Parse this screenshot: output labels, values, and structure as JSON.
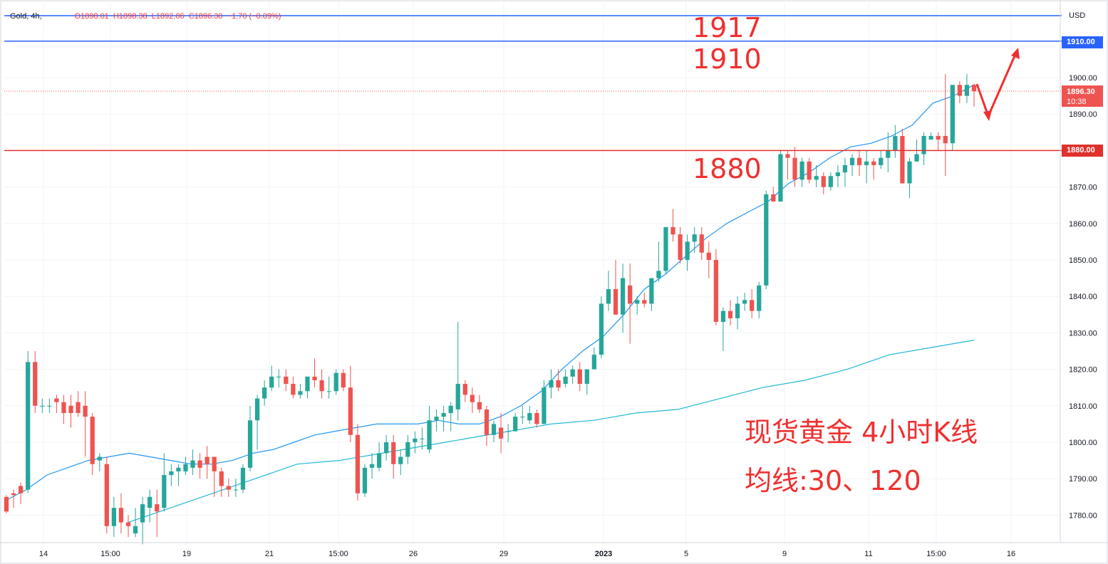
{
  "header": {
    "symbol": "Gold, 4h,",
    "open": "O1898.01",
    "high": "H1898.38",
    "low": "L1892.06",
    "close": "C1896.30",
    "change": "−1.70 (−0.09%)"
  },
  "price_axis": {
    "currency": "USD",
    "ticks": [
      "1900.00",
      "1890.00",
      "1870.00",
      "1860.00",
      "1850.00",
      "1840.00",
      "1830.00",
      "1820.00",
      "1810.00",
      "1800.00",
      "1790.00",
      "1780.00"
    ],
    "tag_upper": "1910.00",
    "tag_current": "1896.30",
    "tag_countdown": "10:38",
    "tag_red": "1880.00"
  },
  "time_axis": [
    "14",
    "15:00",
    "19",
    "21",
    "15:00",
    "26",
    "29",
    "2023",
    "5",
    "9",
    "11",
    "15:00",
    "16"
  ],
  "annotations": {
    "level_1917": "1917",
    "level_1910": "1910",
    "level_1880": "1880",
    "title_line1": "现货黄金 4小时K线",
    "title_line2": "均线:30、120"
  },
  "colors": {
    "up": "#26a69a",
    "down": "#ef5350",
    "ma30": "#2196f3",
    "ma120": "#22b8d4",
    "hline_blue": "#2962ff",
    "hline_red": "#e0312c",
    "annotation": "#f0302f"
  },
  "chart_data": {
    "type": "candlestick",
    "series": [
      {
        "name": "Gold, 4h",
        "ohlc": [
          [
            1785,
            1785.5,
            1780.5,
            1781
          ],
          [
            1786,
            1787,
            1782,
            1785.5
          ],
          [
            1788,
            1789,
            1783,
            1786
          ],
          [
            1787,
            1825,
            1786,
            1822
          ],
          [
            1822,
            1825,
            1808,
            1810
          ],
          [
            1810,
            1812,
            1808,
            1810
          ],
          [
            1810,
            1812,
            1808,
            1810
          ],
          [
            1812,
            1813,
            1808,
            1811
          ],
          [
            1811,
            1813,
            1805,
            1808
          ],
          [
            1810,
            1813,
            1804,
            1808
          ],
          [
            1811,
            1814,
            1807,
            1808
          ],
          [
            1810,
            1814,
            1796,
            1807
          ],
          [
            1807,
            1808,
            1791,
            1794
          ],
          [
            1795,
            1797,
            1792,
            1796
          ],
          [
            1794,
            1796,
            1775,
            1777
          ],
          [
            1777,
            1785,
            1774,
            1782
          ],
          [
            1782,
            1786,
            1775,
            1778
          ],
          [
            1778,
            1780,
            1774,
            1777
          ],
          [
            1775,
            1782,
            1774,
            1777
          ],
          [
            1778,
            1785,
            1772,
            1783
          ],
          [
            1782,
            1787,
            1778,
            1785
          ],
          [
            1783,
            1787,
            1774,
            1781
          ],
          [
            1782,
            1797,
            1781,
            1791
          ],
          [
            1791,
            1794,
            1788,
            1792
          ],
          [
            1792,
            1794,
            1788,
            1793
          ],
          [
            1792,
            1796,
            1791,
            1794
          ],
          [
            1793,
            1798,
            1791,
            1795
          ],
          [
            1795,
            1797,
            1790,
            1793
          ],
          [
            1796,
            1799,
            1790,
            1794
          ],
          [
            1796,
            1796,
            1785,
            1792
          ],
          [
            1792,
            1793,
            1785,
            1788
          ],
          [
            1788,
            1790,
            1785,
            1787
          ],
          [
            1787,
            1790,
            1785,
            1787
          ],
          [
            1787,
            1794,
            1786,
            1793
          ],
          [
            1793,
            1810,
            1792,
            1806
          ],
          [
            1806,
            1813,
            1798,
            1812
          ],
          [
            1812,
            1817,
            1810,
            1815
          ],
          [
            1815,
            1821,
            1814,
            1818
          ],
          [
            1818,
            1820,
            1815,
            1818
          ],
          [
            1818,
            1820,
            1814,
            1816
          ],
          [
            1816,
            1818,
            1812,
            1813
          ],
          [
            1813,
            1816,
            1812,
            1814
          ],
          [
            1814,
            1818,
            1812,
            1818
          ],
          [
            1818,
            1823,
            1815,
            1817
          ],
          [
            1817,
            1820,
            1812,
            1814
          ],
          [
            1814,
            1818,
            1812,
            1814
          ],
          [
            1814,
            1820,
            1813,
            1819
          ],
          [
            1819,
            1820,
            1814,
            1815
          ],
          [
            1815,
            1821,
            1800,
            1802
          ],
          [
            1802,
            1805,
            1784,
            1786
          ],
          [
            1786,
            1794,
            1785,
            1793
          ],
          [
            1793,
            1797,
            1790,
            1794
          ],
          [
            1793,
            1800,
            1792,
            1797
          ],
          [
            1797,
            1802,
            1795,
            1800
          ],
          [
            1800,
            1802,
            1790,
            1794
          ],
          [
            1794,
            1798,
            1791,
            1796
          ],
          [
            1796,
            1802,
            1794,
            1800
          ],
          [
            1800,
            1803,
            1797,
            1801
          ],
          [
            1801,
            1804,
            1798,
            1801
          ],
          [
            1798,
            1810,
            1797,
            1806
          ],
          [
            1806,
            1809,
            1803,
            1807
          ],
          [
            1807,
            1810,
            1803,
            1808
          ],
          [
            1808,
            1811,
            1803,
            1810
          ],
          [
            1809,
            1833,
            1806,
            1816
          ],
          [
            1816,
            1817,
            1811,
            1813
          ],
          [
            1813,
            1815,
            1808,
            1811
          ],
          [
            1811,
            1813,
            1808,
            1809
          ],
          [
            1809,
            1810,
            1799,
            1802
          ],
          [
            1802,
            1806,
            1800,
            1805
          ],
          [
            1804,
            1808,
            1797,
            1801
          ],
          [
            1803,
            1805,
            1800,
            1803
          ],
          [
            1803,
            1808,
            1803,
            1807
          ],
          [
            1807,
            1810,
            1805,
            1807
          ],
          [
            1806,
            1810,
            1805,
            1808
          ],
          [
            1808,
            1809,
            1804,
            1805
          ],
          [
            1805,
            1817,
            1805,
            1815
          ],
          [
            1815,
            1820,
            1812,
            1817
          ],
          [
            1817,
            1820,
            1814,
            1815
          ],
          [
            1816,
            1820,
            1815,
            1818
          ],
          [
            1818,
            1821,
            1816,
            1820
          ],
          [
            1820,
            1822,
            1814,
            1816
          ],
          [
            1816,
            1820,
            1813,
            1820
          ],
          [
            1820,
            1826,
            1820,
            1824
          ],
          [
            1824,
            1840,
            1823,
            1838
          ],
          [
            1838,
            1847,
            1836,
            1842
          ],
          [
            1842,
            1850,
            1835,
            1835
          ],
          [
            1835,
            1849,
            1830,
            1845
          ],
          [
            1843,
            1849,
            1827,
            1838
          ],
          [
            1838,
            1840,
            1835,
            1839
          ],
          [
            1839,
            1841,
            1837,
            1838
          ],
          [
            1838,
            1845,
            1836,
            1845
          ],
          [
            1845,
            1855,
            1844,
            1847
          ],
          [
            1847,
            1859,
            1846,
            1859
          ],
          [
            1859,
            1864,
            1855,
            1857
          ],
          [
            1857,
            1859,
            1849,
            1850
          ],
          [
            1850,
            1857,
            1847,
            1855
          ],
          [
            1855,
            1859,
            1852,
            1857
          ],
          [
            1857,
            1859,
            1850,
            1852
          ],
          [
            1852,
            1855,
            1845,
            1850
          ],
          [
            1850,
            1853,
            1832,
            1833
          ],
          [
            1833,
            1837,
            1825,
            1836
          ],
          [
            1836,
            1839,
            1832,
            1834
          ],
          [
            1834,
            1840,
            1831,
            1838
          ],
          [
            1838,
            1841,
            1836,
            1839
          ],
          [
            1839,
            1842,
            1834,
            1836
          ],
          [
            1836,
            1844,
            1834,
            1843
          ],
          [
            1843,
            1869,
            1842,
            1868
          ],
          [
            1868,
            1870,
            1866,
            1866
          ],
          [
            1866,
            1880,
            1866,
            1879
          ],
          [
            1879,
            1880,
            1872,
            1878
          ],
          [
            1878,
            1881,
            1870,
            1872
          ],
          [
            1872,
            1878,
            1870,
            1877
          ],
          [
            1877,
            1878,
            1871,
            1872
          ],
          [
            1872,
            1876,
            1870,
            1873
          ],
          [
            1873,
            1874,
            1868,
            1870
          ],
          [
            1870,
            1874,
            1869,
            1873
          ],
          [
            1873,
            1876,
            1870,
            1874
          ],
          [
            1874,
            1878,
            1870,
            1876
          ],
          [
            1876,
            1879,
            1873,
            1878
          ],
          [
            1878,
            1880,
            1873,
            1876
          ],
          [
            1876,
            1880,
            1871,
            1877
          ],
          [
            1877,
            1878,
            1872,
            1876
          ],
          [
            1876,
            1880,
            1875,
            1878
          ],
          [
            1878,
            1885,
            1874,
            1880
          ],
          [
            1880,
            1887,
            1878,
            1884
          ],
          [
            1884,
            1886,
            1871,
            1871
          ],
          [
            1871,
            1878,
            1867,
            1877
          ],
          [
            1877,
            1883,
            1877,
            1879
          ],
          [
            1879,
            1885,
            1876,
            1884
          ],
          [
            1883,
            1885,
            1883,
            1884
          ],
          [
            1884,
            1885,
            1880,
            1883
          ],
          [
            1884,
            1901,
            1873,
            1882
          ],
          [
            1882,
            1897,
            1880,
            1898
          ],
          [
            1898,
            1899,
            1893,
            1895
          ],
          [
            1895,
            1901,
            1893,
            1898
          ],
          [
            1898.01,
            1898.38,
            1892.06,
            1896.3
          ]
        ]
      }
    ],
    "ma30": [
      1784,
      1787,
      1791,
      1793,
      1795,
      1796,
      1797,
      1796,
      1795,
      1794,
      1794,
      1795,
      1797,
      1798,
      1800,
      1802,
      1803,
      1804,
      1805,
      1805,
      1805,
      1806,
      1805,
      1805,
      1807,
      1810,
      1814,
      1820,
      1825,
      1829,
      1835,
      1842,
      1846,
      1851,
      1856,
      1860,
      1863,
      1866,
      1871,
      1874,
      1878,
      1881,
      1882,
      1884,
      1887,
      1893,
      1895,
      1898
    ],
    "ma120": [
      1778,
      1782,
      1786,
      1790,
      1794,
      1795,
      1797,
      1799,
      1801,
      1803,
      1805,
      1806,
      1808,
      1809,
      1812,
      1815,
      1817,
      1820,
      1824,
      1826,
      1828
    ],
    "x_labels": [
      "14",
      "15:00",
      "19",
      "21",
      "15:00",
      "26",
      "29",
      "2023",
      "5",
      "9",
      "11",
      "15:00",
      "16"
    ],
    "y_ticks": [
      1780,
      1790,
      1800,
      1810,
      1820,
      1830,
      1840,
      1850,
      1860,
      1870,
      1880,
      1890,
      1900
    ],
    "ylim": [
      1772,
      1922
    ],
    "horizontal_lines": [
      1917,
      1910,
      1880
    ],
    "last_price": 1896.3
  }
}
